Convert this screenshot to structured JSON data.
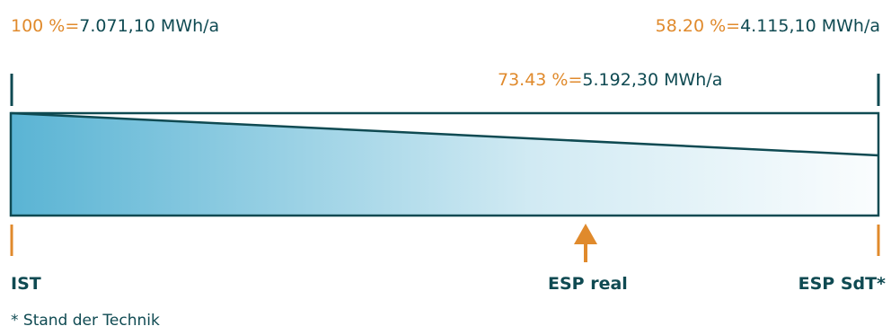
{
  "labels": {
    "ist_value": {
      "percent": "100 %",
      "eq": "=",
      "amount": "7.071,10 MWh/a"
    },
    "sdt_value": {
      "percent": "58.20 %",
      "eq": "=",
      "amount": "4.115,10 MWh/a"
    },
    "real_value": {
      "percent": "73.43 %",
      "eq": "=",
      "amount": "5.192,30 MWh/a"
    }
  },
  "markers": {
    "ist": "IST",
    "esp_real": "ESP real",
    "esp_sdt": "ESP SdT*"
  },
  "footnote": "* Stand der Technik",
  "levels": {
    "ist": 100,
    "esp_real": 73.43,
    "esp_sdt": 58.2
  },
  "colors": {
    "teal": "#0f4a52",
    "gradient": "#5ab4d4",
    "orange": "#e08a2c"
  }
}
